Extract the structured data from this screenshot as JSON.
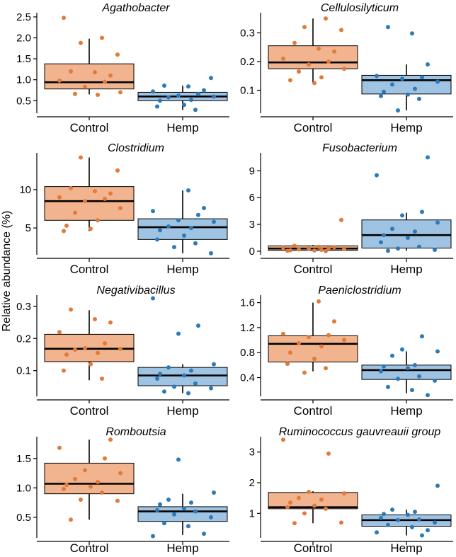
{
  "figure": {
    "y_axis_label": "Relative abundance (%)",
    "categories": [
      "Control",
      "Hemp"
    ],
    "group_colors": {
      "Control": {
        "box_fill": "#f2b48e",
        "point": "#e07b39"
      },
      "Hemp": {
        "box_fill": "#9fc3e3",
        "point": "#2b7bba"
      }
    }
  },
  "chart_data": [
    {
      "type": "box",
      "title": "Agathobacter",
      "ylim": [
        0.2,
        2.6
      ],
      "yticks": [
        0.5,
        1.0,
        1.5,
        2.0,
        2.5
      ],
      "ytick_labels": [
        "0.5",
        "1.0",
        "1.5",
        "2.0",
        "2.5"
      ],
      "groups": [
        {
          "name": "Control",
          "min": 0.65,
          "q1": 0.78,
          "median": 0.94,
          "q3": 1.38,
          "max": 1.98,
          "points": [
            2.48,
            2.0,
            1.88,
            1.6,
            1.2,
            1.18,
            1.1,
            0.98,
            0.95,
            0.83,
            0.7,
            0.66,
            0.64
          ]
        },
        {
          "name": "Hemp",
          "min": 0.28,
          "q1": 0.5,
          "median": 0.6,
          "q3": 0.7,
          "max": 0.86,
          "points": [
            1.04,
            0.86,
            0.84,
            0.75,
            0.72,
            0.66,
            0.62,
            0.6,
            0.58,
            0.52,
            0.5,
            0.4,
            0.36,
            0.28
          ]
        }
      ]
    },
    {
      "type": "box",
      "title": "Cellulosilyticum",
      "ylim": [
        0.02,
        0.37
      ],
      "yticks": [
        0.1,
        0.2,
        0.3
      ],
      "ytick_labels": [
        "0.1",
        "0.2",
        "0.3"
      ],
      "groups": [
        {
          "name": "Control",
          "min": 0.125,
          "q1": 0.175,
          "median": 0.197,
          "q3": 0.255,
          "max": 0.35,
          "points": [
            0.35,
            0.32,
            0.31,
            0.265,
            0.245,
            0.235,
            0.21,
            0.2,
            0.19,
            0.175,
            0.165,
            0.145,
            0.135,
            0.125
          ]
        },
        {
          "name": "Hemp",
          "min": 0.03,
          "q1": 0.087,
          "median": 0.135,
          "q3": 0.152,
          "max": 0.19,
          "points": [
            0.32,
            0.298,
            0.19,
            0.15,
            0.145,
            0.14,
            0.13,
            0.12,
            0.105,
            0.095,
            0.085,
            0.08,
            0.07,
            0.03
          ]
        }
      ]
    },
    {
      "type": "box",
      "title": "Clostridium",
      "ylim": [
        1.5,
        14.8
      ],
      "yticks": [
        5,
        10
      ],
      "ytick_labels": [
        "5",
        "10"
      ],
      "groups": [
        {
          "name": "Control",
          "min": 4.6,
          "q1": 6.0,
          "median": 8.5,
          "q3": 10.4,
          "max": 14.2,
          "points": [
            14.2,
            12.5,
            10.2,
            9.8,
            9.5,
            9.0,
            8.8,
            8.5,
            7.6,
            7.0,
            6.0,
            5.3,
            4.9,
            4.6
          ]
        },
        {
          "name": "Hemp",
          "min": 1.7,
          "q1": 3.5,
          "median": 5.1,
          "q3": 6.2,
          "max": 9.9,
          "points": [
            9.9,
            7.6,
            7.2,
            6.7,
            6.0,
            5.8,
            5.2,
            5.0,
            4.7,
            4.0,
            3.5,
            3.0,
            2.5,
            1.7
          ]
        }
      ]
    },
    {
      "type": "box",
      "title": "Fusobacterium",
      "ylim": [
        -0.4,
        11.0
      ],
      "yticks": [
        0,
        3,
        6,
        9
      ],
      "ytick_labels": [
        "0",
        "3",
        "6",
        "9"
      ],
      "groups": [
        {
          "name": "Control",
          "min": 0.02,
          "q1": 0.1,
          "median": 0.3,
          "q3": 0.6,
          "max": 0.7,
          "points": [
            3.5,
            0.6,
            0.5,
            0.45,
            0.4,
            0.35,
            0.3,
            0.25,
            0.2,
            0.15,
            0.1,
            0.08,
            0.05,
            0.02
          ]
        },
        {
          "name": "Hemp",
          "min": 0.05,
          "q1": 0.35,
          "median": 1.8,
          "q3": 3.5,
          "max": 4.3,
          "points": [
            10.5,
            8.5,
            4.4,
            4.0,
            3.2,
            2.5,
            2.2,
            1.8,
            1.5,
            1.0,
            0.5,
            0.3,
            0.15,
            0.05
          ]
        }
      ]
    },
    {
      "type": "box",
      "title": "Negativibacillus",
      "ylim": [
        0.02,
        0.335
      ],
      "yticks": [
        0.1,
        0.2,
        0.3
      ],
      "ytick_labels": [
        "0.1",
        "0.2",
        "0.3"
      ],
      "groups": [
        {
          "name": "Control",
          "min": 0.07,
          "q1": 0.128,
          "median": 0.168,
          "q3": 0.213,
          "max": 0.288,
          "points": [
            0.29,
            0.26,
            0.25,
            0.22,
            0.185,
            0.17,
            0.168,
            0.165,
            0.155,
            0.15,
            0.12,
            0.1,
            0.075
          ]
        },
        {
          "name": "Hemp",
          "min": 0.03,
          "q1": 0.053,
          "median": 0.085,
          "q3": 0.11,
          "max": 0.12,
          "points": [
            0.325,
            0.24,
            0.215,
            0.12,
            0.11,
            0.1,
            0.09,
            0.085,
            0.075,
            0.06,
            0.05,
            0.045,
            0.035,
            0.03
          ]
        }
      ]
    },
    {
      "type": "box",
      "title": "Paeniclostridium",
      "ylim": [
        0.1,
        1.72
      ],
      "yticks": [
        0.4,
        0.8,
        1.2,
        1.6
      ],
      "ytick_labels": [
        "0.4",
        "0.8",
        "1.2",
        "1.6"
      ],
      "groups": [
        {
          "name": "Control",
          "min": 0.5,
          "q1": 0.65,
          "median": 0.94,
          "q3": 1.07,
          "max": 1.6,
          "points": [
            1.62,
            1.3,
            1.1,
            1.08,
            1.05,
            1.0,
            0.95,
            0.9,
            0.8,
            0.7,
            0.62,
            0.55,
            0.48
          ]
        },
        {
          "name": "Hemp",
          "min": 0.15,
          "q1": 0.37,
          "median": 0.52,
          "q3": 0.6,
          "max": 0.82,
          "points": [
            1.06,
            0.85,
            0.82,
            0.75,
            0.6,
            0.58,
            0.55,
            0.5,
            0.42,
            0.38,
            0.35,
            0.25,
            0.2,
            0.12
          ]
        }
      ]
    },
    {
      "type": "box",
      "title": "Romboutsia",
      "ylim": [
        0.15,
        1.87
      ],
      "yticks": [
        0.5,
        1.0,
        1.5
      ],
      "ytick_labels": [
        "0.5",
        "1.0",
        "1.5"
      ],
      "groups": [
        {
          "name": "Control",
          "min": 0.46,
          "q1": 0.9,
          "median": 1.07,
          "q3": 1.42,
          "max": 1.82,
          "points": [
            1.82,
            1.68,
            1.5,
            1.3,
            1.25,
            1.15,
            1.1,
            1.05,
            1.02,
            0.98,
            0.92,
            0.8,
            0.78,
            0.46
          ]
        },
        {
          "name": "Hemp",
          "min": 0.2,
          "q1": 0.43,
          "median": 0.6,
          "q3": 0.68,
          "max": 0.9,
          "points": [
            1.48,
            0.92,
            0.8,
            0.75,
            0.72,
            0.65,
            0.62,
            0.6,
            0.55,
            0.5,
            0.4,
            0.35,
            0.22,
            0.18
          ]
        }
      ]
    },
    {
      "type": "box",
      "title": "Ruminococcus gauvreauii group",
      "ylim": [
        0.2,
        3.5
      ],
      "yticks": [
        1,
        2,
        3
      ],
      "ytick_labels": [
        "1",
        "2",
        "3"
      ],
      "groups": [
        {
          "name": "Control",
          "min": 0.68,
          "q1": 1.15,
          "median": 1.2,
          "q3": 1.68,
          "max": 1.72,
          "points": [
            3.4,
            2.95,
            1.7,
            1.65,
            1.5,
            1.45,
            1.35,
            1.25,
            1.2,
            1.15,
            1.0,
            0.7,
            0.68
          ]
        },
        {
          "name": "Hemp",
          "min": 0.28,
          "q1": 0.58,
          "median": 0.78,
          "q3": 0.95,
          "max": 1.12,
          "points": [
            1.9,
            1.12,
            1.05,
            0.98,
            0.95,
            0.85,
            0.8,
            0.78,
            0.7,
            0.62,
            0.55,
            0.45,
            0.38,
            0.28
          ]
        }
      ]
    }
  ]
}
